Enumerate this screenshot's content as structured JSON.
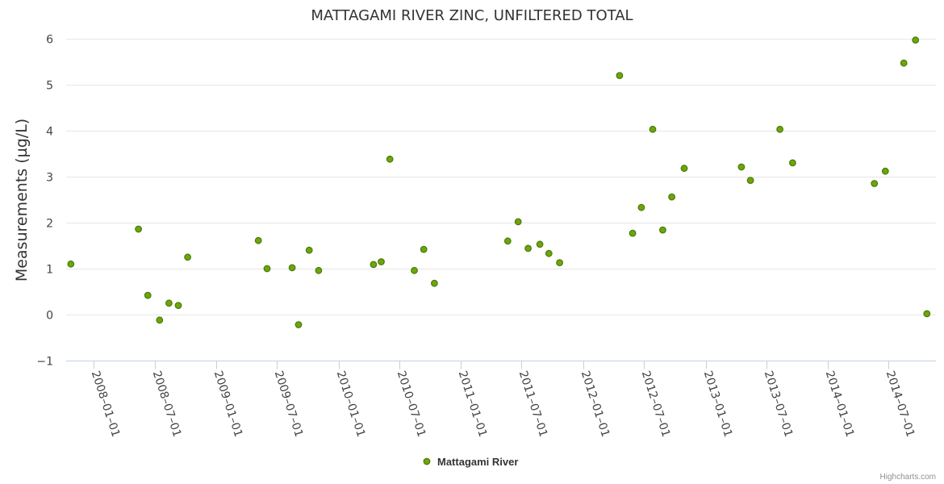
{
  "chart_data": {
    "type": "scatter",
    "title": "MATTAGAMI RIVER ZINC, UNFILTERED TOTAL",
    "xlabel": "",
    "ylabel": "Measurements (µg/L)",
    "ylim": [
      -1,
      6
    ],
    "yticks": [
      -1,
      0,
      1,
      2,
      3,
      4,
      5,
      6
    ],
    "xlim": [
      "2007-10-10",
      "2014-11-20"
    ],
    "xticks": [
      "2008-01-01",
      "2008-07-01",
      "2009-01-01",
      "2009-07-01",
      "2010-01-01",
      "2010-07-01",
      "2011-01-01",
      "2011-07-01",
      "2012-01-01",
      "2012-07-01",
      "2013-01-01",
      "2013-07-01",
      "2014-01-01",
      "2014-07-01"
    ],
    "grid": true,
    "legend": "bottom-center",
    "series": [
      {
        "name": "Mattagami River",
        "color": "#6ea40e",
        "points": [
          {
            "x": "2007-10-24",
            "y": 1.1
          },
          {
            "x": "2008-05-13",
            "y": 1.86
          },
          {
            "x": "2008-06-10",
            "y": 0.42
          },
          {
            "x": "2008-07-15",
            "y": -0.12
          },
          {
            "x": "2008-08-12",
            "y": 0.25
          },
          {
            "x": "2008-09-09",
            "y": 0.2
          },
          {
            "x": "2008-10-07",
            "y": 1.25
          },
          {
            "x": "2009-05-06",
            "y": 1.61
          },
          {
            "x": "2009-06-01",
            "y": 1.0
          },
          {
            "x": "2009-08-15",
            "y": 1.02
          },
          {
            "x": "2009-09-03",
            "y": -0.22
          },
          {
            "x": "2009-10-05",
            "y": 1.4
          },
          {
            "x": "2009-11-02",
            "y": 0.96
          },
          {
            "x": "2010-04-15",
            "y": 1.09
          },
          {
            "x": "2010-05-08",
            "y": 1.15
          },
          {
            "x": "2010-06-03",
            "y": 3.38
          },
          {
            "x": "2010-08-15",
            "y": 0.96
          },
          {
            "x": "2010-09-12",
            "y": 1.42
          },
          {
            "x": "2010-10-14",
            "y": 0.68
          },
          {
            "x": "2011-05-21",
            "y": 1.6
          },
          {
            "x": "2011-06-21",
            "y": 2.02
          },
          {
            "x": "2011-07-21",
            "y": 1.44
          },
          {
            "x": "2011-08-25",
            "y": 1.53
          },
          {
            "x": "2011-09-21",
            "y": 1.33
          },
          {
            "x": "2011-10-23",
            "y": 1.13
          },
          {
            "x": "2012-04-19",
            "y": 5.2
          },
          {
            "x": "2012-05-28",
            "y": 1.77
          },
          {
            "x": "2012-06-23",
            "y": 2.33
          },
          {
            "x": "2012-07-27",
            "y": 4.03
          },
          {
            "x": "2012-08-26",
            "y": 1.84
          },
          {
            "x": "2012-09-22",
            "y": 2.56
          },
          {
            "x": "2012-10-29",
            "y": 3.18
          },
          {
            "x": "2013-04-18",
            "y": 3.21
          },
          {
            "x": "2013-05-15",
            "y": 2.92
          },
          {
            "x": "2013-08-11",
            "y": 4.03
          },
          {
            "x": "2013-09-18",
            "y": 3.3
          },
          {
            "x": "2014-05-20",
            "y": 2.85
          },
          {
            "x": "2014-06-22",
            "y": 3.12
          },
          {
            "x": "2014-08-16",
            "y": 5.47
          },
          {
            "x": "2014-09-20",
            "y": 5.97
          },
          {
            "x": "2014-10-24",
            "y": 0.02
          }
        ]
      }
    ]
  },
  "credits": "Highcharts.com"
}
